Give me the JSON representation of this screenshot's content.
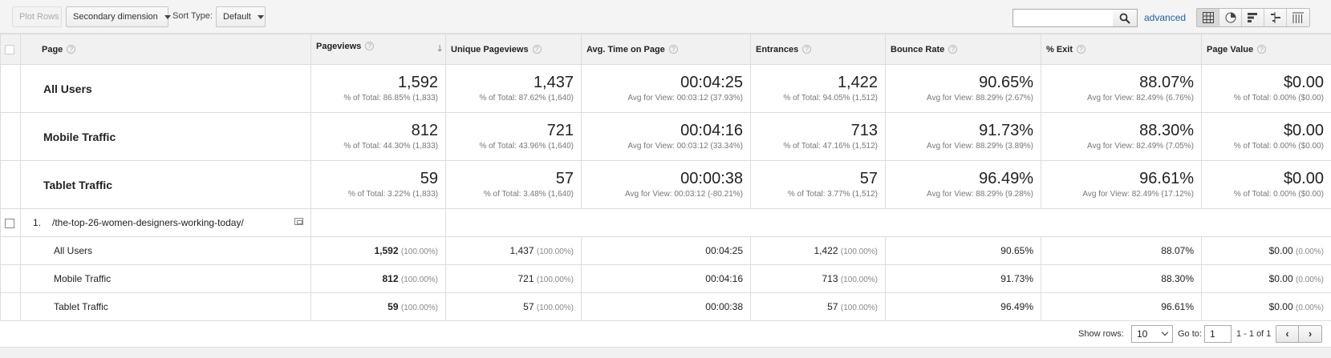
{
  "toolbar": {
    "plot_rows": "Plot Rows",
    "secondary_dimension": "Secondary dimension",
    "sort_type_label": "Sort Type:",
    "sort_type_value": "Default",
    "search_value": "",
    "advanced_link": "advanced",
    "view_icons": [
      "table-view-icon",
      "pie-view-icon",
      "performance-view-icon",
      "comparison-view-icon",
      "pivot-view-icon"
    ]
  },
  "table": {
    "headers": {
      "page": "Page",
      "pageviews": "Pageviews",
      "unique_pageviews": "Unique Pageviews",
      "avg_time": "Avg. Time on Page",
      "entrances": "Entrances",
      "bounce_rate": "Bounce Rate",
      "exit": "% Exit",
      "page_value": "Page Value"
    },
    "help_glyph": "?",
    "sort_glyph": "🡓",
    "summary": [
      {
        "segment": "All Users",
        "cells": [
          {
            "value": "1,592",
            "sub": "% of Total: 86.85% (1,833)"
          },
          {
            "value": "1,437",
            "sub": "% of Total: 87.62% (1,640)"
          },
          {
            "value": "00:04:25",
            "sub": "Avg for View: 00:03:12 (37.93%)"
          },
          {
            "value": "1,422",
            "sub": "% of Total: 94.05% (1,512)"
          },
          {
            "value": "90.65%",
            "sub": "Avg for View: 88.29% (2.67%)"
          },
          {
            "value": "88.07%",
            "sub": "Avg for View: 82.49% (6.76%)"
          },
          {
            "value": "$0.00",
            "sub": "% of Total: 0.00% ($0.00)"
          }
        ]
      },
      {
        "segment": "Mobile Traffic",
        "cells": [
          {
            "value": "812",
            "sub": "% of Total: 44.30% (1,833)"
          },
          {
            "value": "721",
            "sub": "% of Total: 43.96% (1,640)"
          },
          {
            "value": "00:04:16",
            "sub": "Avg for View: 00:03:12 (33.34%)"
          },
          {
            "value": "713",
            "sub": "% of Total: 47.16% (1,512)"
          },
          {
            "value": "91.73%",
            "sub": "Avg for View: 88.29% (3.89%)"
          },
          {
            "value": "88.30%",
            "sub": "Avg for View: 82.49% (7.05%)"
          },
          {
            "value": "$0.00",
            "sub": "% of Total: 0.00% ($0.00)"
          }
        ]
      },
      {
        "segment": "Tablet Traffic",
        "cells": [
          {
            "value": "59",
            "sub": "% of Total: 3.22% (1,833)"
          },
          {
            "value": "57",
            "sub": "% of Total: 3.48% (1,640)"
          },
          {
            "value": "00:00:38",
            "sub": "Avg for View: 00:03:12 (-80.21%)"
          },
          {
            "value": "57",
            "sub": "% of Total: 3.77% (1,512)"
          },
          {
            "value": "96.49%",
            "sub": "Avg for View: 88.29% (9.28%)"
          },
          {
            "value": "96.61%",
            "sub": "Avg for View: 82.49% (17.12%)"
          },
          {
            "value": "$0.00",
            "sub": "% of Total: 0.00% ($0.00)"
          }
        ]
      }
    ],
    "row": {
      "index": "1.",
      "page": "/the-top-26-women-designers-working-today/"
    },
    "segment_rows": [
      {
        "name": "All Users",
        "pageviews": "1,592",
        "pageviews_pct": "(100.00%)",
        "unique": "1,437",
        "unique_pct": "(100.00%)",
        "avg_time": "00:04:25",
        "entrances": "1,422",
        "entrances_pct": "(100.00%)",
        "bounce": "90.65%",
        "exit": "88.07%",
        "value": "$0.00",
        "value_pct": "(0.00%)"
      },
      {
        "name": "Mobile Traffic",
        "pageviews": "812",
        "pageviews_pct": "(100.00%)",
        "unique": "721",
        "unique_pct": "(100.00%)",
        "avg_time": "00:04:16",
        "entrances": "713",
        "entrances_pct": "(100.00%)",
        "bounce": "91.73%",
        "exit": "88.30%",
        "value": "$0.00",
        "value_pct": "(0.00%)"
      },
      {
        "name": "Tablet Traffic",
        "pageviews": "59",
        "pageviews_pct": "(100.00%)",
        "unique": "57",
        "unique_pct": "(100.00%)",
        "avg_time": "00:00:38",
        "entrances": "57",
        "entrances_pct": "(100.00%)",
        "bounce": "96.49%",
        "exit": "96.61%",
        "value": "$0.00",
        "value_pct": "(0.00%)"
      }
    ]
  },
  "footer": {
    "show_rows_label": "Show rows:",
    "show_rows_value": "10",
    "goto_label": "Go to:",
    "goto_value": "1",
    "range": "1 - 1 of 1",
    "prev_glyph": "‹",
    "next_glyph": "›"
  }
}
